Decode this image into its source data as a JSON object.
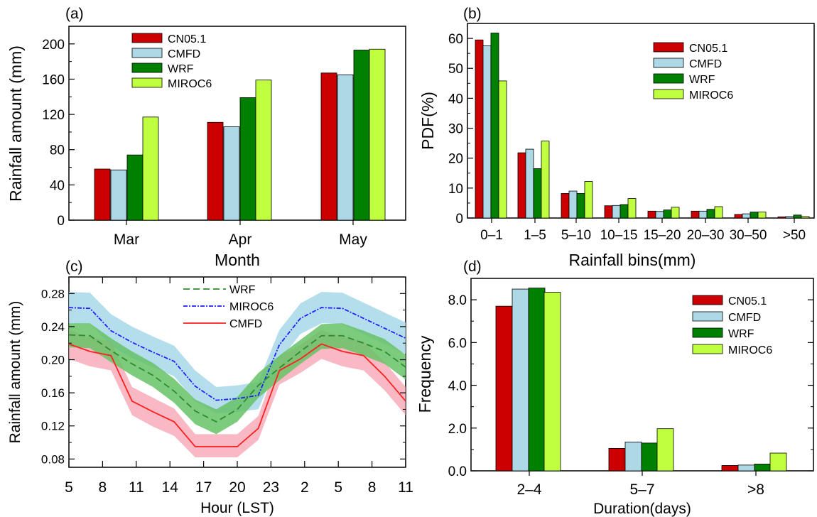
{
  "colors": {
    "CN05.1": "#cc0000",
    "CMFD": "#add8e6",
    "WRF": "#008000",
    "MIROC6": "#bfff40",
    "wrf_line": "#2e8b2e",
    "miroc_line": "#1f1fff",
    "cmfd_line": "#ff2020",
    "wrf_band": "#66c266",
    "miroc_band": "#a8d8ea",
    "cmfd_band": "#f5a0b0"
  },
  "chart_data": [
    {
      "panel": "(a)",
      "type": "bar",
      "xlabel": "Month",
      "ylabel": "Rainfall amount (mm)",
      "ylim": [
        0,
        220
      ],
      "yticks": [
        "0",
        "40",
        "80",
        "120",
        "160",
        "200"
      ],
      "categories": [
        "Mar",
        "Apr",
        "May"
      ],
      "legend": "top-left",
      "series": [
        {
          "name": "CN05.1",
          "values": [
            58,
            111,
            167
          ]
        },
        {
          "name": "CMFD",
          "values": [
            57,
            106,
            165
          ]
        },
        {
          "name": "WRF",
          "values": [
            74,
            139,
            193
          ]
        },
        {
          "name": "MIROC6",
          "values": [
            117,
            159,
            194
          ]
        }
      ]
    },
    {
      "panel": "(b)",
      "type": "bar",
      "xlabel": "Rainfall bins(mm)",
      "ylabel": "PDF(%)",
      "ylim": [
        0,
        65
      ],
      "yticks": [
        "0",
        "10",
        "20",
        "30",
        "40",
        "50",
        "60"
      ],
      "categories": [
        "0–1",
        "1–5",
        "5–10",
        "10–15",
        "15–20",
        "20–30",
        "30–50",
        ">50"
      ],
      "legend": "top-right",
      "series": [
        {
          "name": "CN05.1",
          "values": [
            59.5,
            21.8,
            8.2,
            4.1,
            2.3,
            2.3,
            1.2,
            0.4
          ]
        },
        {
          "name": "CMFD",
          "values": [
            57.5,
            23.0,
            9.0,
            4.2,
            2.2,
            2.3,
            1.4,
            0.5
          ]
        },
        {
          "name": "WRF",
          "values": [
            61.8,
            16.5,
            8.2,
            4.5,
            2.7,
            2.9,
            2.0,
            1.0
          ]
        },
        {
          "name": "MIROC6",
          "values": [
            45.8,
            25.7,
            12.2,
            6.5,
            3.6,
            3.8,
            2.0,
            0.5
          ]
        }
      ]
    },
    {
      "panel": "(c)",
      "type": "line",
      "xlabel": "Hour (LST)",
      "ylabel": "Rainfall amount (mm)",
      "ylim": [
        0.07,
        0.3
      ],
      "yticks": [
        "0.08",
        "0.12",
        "0.16",
        "0.20",
        "0.24",
        "0.28"
      ],
      "xticks": [
        "5",
        "8",
        "11",
        "14",
        "17",
        "20",
        "23",
        "2",
        "5",
        "8",
        "11"
      ],
      "legend": "top-center",
      "x": [
        0,
        1,
        2,
        3,
        4,
        5,
        6,
        7,
        8,
        9,
        10,
        11,
        12,
        13,
        14,
        15,
        16
      ],
      "series": [
        {
          "name": "WRF",
          "values": [
            0.23,
            0.229,
            0.211,
            0.195,
            0.181,
            0.162,
            0.138,
            0.125,
            0.14,
            0.169,
            0.19,
            0.21,
            0.229,
            0.229,
            0.22,
            0.21,
            0.191
          ],
          "lower": [
            0.215,
            0.214,
            0.197,
            0.181,
            0.167,
            0.148,
            0.122,
            0.11,
            0.125,
            0.154,
            0.175,
            0.195,
            0.213,
            0.214,
            0.205,
            0.195,
            0.176
          ],
          "upper": [
            0.244,
            0.244,
            0.226,
            0.21,
            0.196,
            0.177,
            0.152,
            0.14,
            0.155,
            0.184,
            0.205,
            0.224,
            0.243,
            0.244,
            0.235,
            0.225,
            0.206
          ]
        },
        {
          "name": "MIROC6",
          "values": [
            0.263,
            0.262,
            0.235,
            0.221,
            0.209,
            0.198,
            0.168,
            0.151,
            0.153,
            0.157,
            0.218,
            0.25,
            0.263,
            0.262,
            0.25,
            0.238,
            0.226
          ],
          "lower": [
            0.244,
            0.243,
            0.217,
            0.202,
            0.191,
            0.18,
            0.15,
            0.135,
            0.137,
            0.14,
            0.199,
            0.231,
            0.244,
            0.243,
            0.231,
            0.219,
            0.207
          ],
          "upper": [
            0.282,
            0.281,
            0.255,
            0.24,
            0.228,
            0.217,
            0.187,
            0.167,
            0.169,
            0.173,
            0.236,
            0.268,
            0.282,
            0.281,
            0.269,
            0.257,
            0.245
          ]
        },
        {
          "name": "CMFD",
          "values": [
            0.219,
            0.21,
            0.205,
            0.15,
            0.137,
            0.125,
            0.095,
            0.095,
            0.095,
            0.117,
            0.187,
            0.201,
            0.219,
            0.21,
            0.205,
            0.18,
            0.15
          ],
          "lower": [
            0.201,
            0.192,
            0.187,
            0.133,
            0.119,
            0.108,
            0.082,
            0.082,
            0.082,
            0.103,
            0.17,
            0.184,
            0.201,
            0.192,
            0.187,
            0.163,
            0.133
          ],
          "upper": [
            0.236,
            0.227,
            0.222,
            0.167,
            0.154,
            0.141,
            0.11,
            0.11,
            0.11,
            0.132,
            0.204,
            0.218,
            0.236,
            0.227,
            0.222,
            0.197,
            0.167
          ]
        }
      ]
    },
    {
      "panel": "(d)",
      "type": "bar",
      "xlabel": "Duration(days)",
      "ylabel": "Frequency",
      "ylim": [
        0,
        9
      ],
      "yticks": [
        "0.0",
        "2.0",
        "4.0",
        "6.0",
        "8.0"
      ],
      "categories": [
        "2–4",
        "5–7",
        ">8"
      ],
      "legend": "top-right",
      "series": [
        {
          "name": "CN05.1",
          "values": [
            7.7,
            1.05,
            0.25
          ]
        },
        {
          "name": "CMFD",
          "values": [
            8.5,
            1.35,
            0.27
          ]
        },
        {
          "name": "WRF",
          "values": [
            8.55,
            1.3,
            0.32
          ]
        },
        {
          "name": "MIROC6",
          "values": [
            8.35,
            1.97,
            0.83
          ]
        }
      ]
    }
  ]
}
